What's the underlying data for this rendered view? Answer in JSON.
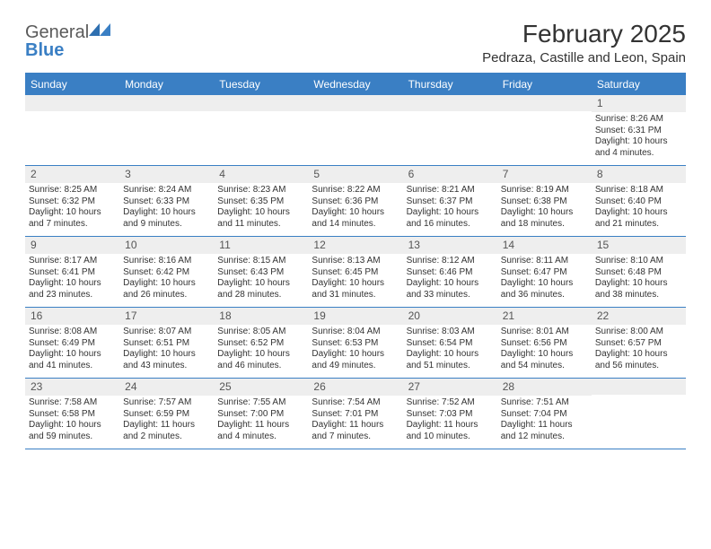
{
  "header": {
    "logo_word1": "General",
    "logo_word2": "Blue",
    "month_title": "February 2025",
    "location": "Pedraza, Castille and Leon, Spain"
  },
  "style": {
    "header_bar_color": "#3a7fc4",
    "daynum_bg": "#eeeeee",
    "text_color": "#333333",
    "logo_blue": "#3a7fc4",
    "body_fontsize": 10,
    "title_fontsize": 28
  },
  "dow": [
    "Sunday",
    "Monday",
    "Tuesday",
    "Wednesday",
    "Thursday",
    "Friday",
    "Saturday"
  ],
  "weeks": [
    [
      {
        "n": "",
        "sr": "",
        "ss": "",
        "dl": ""
      },
      {
        "n": "",
        "sr": "",
        "ss": "",
        "dl": ""
      },
      {
        "n": "",
        "sr": "",
        "ss": "",
        "dl": ""
      },
      {
        "n": "",
        "sr": "",
        "ss": "",
        "dl": ""
      },
      {
        "n": "",
        "sr": "",
        "ss": "",
        "dl": ""
      },
      {
        "n": "",
        "sr": "",
        "ss": "",
        "dl": ""
      },
      {
        "n": "1",
        "sr": "Sunrise: 8:26 AM",
        "ss": "Sunset: 6:31 PM",
        "dl": "Daylight: 10 hours and 4 minutes."
      }
    ],
    [
      {
        "n": "2",
        "sr": "Sunrise: 8:25 AM",
        "ss": "Sunset: 6:32 PM",
        "dl": "Daylight: 10 hours and 7 minutes."
      },
      {
        "n": "3",
        "sr": "Sunrise: 8:24 AM",
        "ss": "Sunset: 6:33 PM",
        "dl": "Daylight: 10 hours and 9 minutes."
      },
      {
        "n": "4",
        "sr": "Sunrise: 8:23 AM",
        "ss": "Sunset: 6:35 PM",
        "dl": "Daylight: 10 hours and 11 minutes."
      },
      {
        "n": "5",
        "sr": "Sunrise: 8:22 AM",
        "ss": "Sunset: 6:36 PM",
        "dl": "Daylight: 10 hours and 14 minutes."
      },
      {
        "n": "6",
        "sr": "Sunrise: 8:21 AM",
        "ss": "Sunset: 6:37 PM",
        "dl": "Daylight: 10 hours and 16 minutes."
      },
      {
        "n": "7",
        "sr": "Sunrise: 8:19 AM",
        "ss": "Sunset: 6:38 PM",
        "dl": "Daylight: 10 hours and 18 minutes."
      },
      {
        "n": "8",
        "sr": "Sunrise: 8:18 AM",
        "ss": "Sunset: 6:40 PM",
        "dl": "Daylight: 10 hours and 21 minutes."
      }
    ],
    [
      {
        "n": "9",
        "sr": "Sunrise: 8:17 AM",
        "ss": "Sunset: 6:41 PM",
        "dl": "Daylight: 10 hours and 23 minutes."
      },
      {
        "n": "10",
        "sr": "Sunrise: 8:16 AM",
        "ss": "Sunset: 6:42 PM",
        "dl": "Daylight: 10 hours and 26 minutes."
      },
      {
        "n": "11",
        "sr": "Sunrise: 8:15 AM",
        "ss": "Sunset: 6:43 PM",
        "dl": "Daylight: 10 hours and 28 minutes."
      },
      {
        "n": "12",
        "sr": "Sunrise: 8:13 AM",
        "ss": "Sunset: 6:45 PM",
        "dl": "Daylight: 10 hours and 31 minutes."
      },
      {
        "n": "13",
        "sr": "Sunrise: 8:12 AM",
        "ss": "Sunset: 6:46 PM",
        "dl": "Daylight: 10 hours and 33 minutes."
      },
      {
        "n": "14",
        "sr": "Sunrise: 8:11 AM",
        "ss": "Sunset: 6:47 PM",
        "dl": "Daylight: 10 hours and 36 minutes."
      },
      {
        "n": "15",
        "sr": "Sunrise: 8:10 AM",
        "ss": "Sunset: 6:48 PM",
        "dl": "Daylight: 10 hours and 38 minutes."
      }
    ],
    [
      {
        "n": "16",
        "sr": "Sunrise: 8:08 AM",
        "ss": "Sunset: 6:49 PM",
        "dl": "Daylight: 10 hours and 41 minutes."
      },
      {
        "n": "17",
        "sr": "Sunrise: 8:07 AM",
        "ss": "Sunset: 6:51 PM",
        "dl": "Daylight: 10 hours and 43 minutes."
      },
      {
        "n": "18",
        "sr": "Sunrise: 8:05 AM",
        "ss": "Sunset: 6:52 PM",
        "dl": "Daylight: 10 hours and 46 minutes."
      },
      {
        "n": "19",
        "sr": "Sunrise: 8:04 AM",
        "ss": "Sunset: 6:53 PM",
        "dl": "Daylight: 10 hours and 49 minutes."
      },
      {
        "n": "20",
        "sr": "Sunrise: 8:03 AM",
        "ss": "Sunset: 6:54 PM",
        "dl": "Daylight: 10 hours and 51 minutes."
      },
      {
        "n": "21",
        "sr": "Sunrise: 8:01 AM",
        "ss": "Sunset: 6:56 PM",
        "dl": "Daylight: 10 hours and 54 minutes."
      },
      {
        "n": "22",
        "sr": "Sunrise: 8:00 AM",
        "ss": "Sunset: 6:57 PM",
        "dl": "Daylight: 10 hours and 56 minutes."
      }
    ],
    [
      {
        "n": "23",
        "sr": "Sunrise: 7:58 AM",
        "ss": "Sunset: 6:58 PM",
        "dl": "Daylight: 10 hours and 59 minutes."
      },
      {
        "n": "24",
        "sr": "Sunrise: 7:57 AM",
        "ss": "Sunset: 6:59 PM",
        "dl": "Daylight: 11 hours and 2 minutes."
      },
      {
        "n": "25",
        "sr": "Sunrise: 7:55 AM",
        "ss": "Sunset: 7:00 PM",
        "dl": "Daylight: 11 hours and 4 minutes."
      },
      {
        "n": "26",
        "sr": "Sunrise: 7:54 AM",
        "ss": "Sunset: 7:01 PM",
        "dl": "Daylight: 11 hours and 7 minutes."
      },
      {
        "n": "27",
        "sr": "Sunrise: 7:52 AM",
        "ss": "Sunset: 7:03 PM",
        "dl": "Daylight: 11 hours and 10 minutes."
      },
      {
        "n": "28",
        "sr": "Sunrise: 7:51 AM",
        "ss": "Sunset: 7:04 PM",
        "dl": "Daylight: 11 hours and 12 minutes."
      },
      {
        "n": "",
        "sr": "",
        "ss": "",
        "dl": ""
      }
    ]
  ]
}
